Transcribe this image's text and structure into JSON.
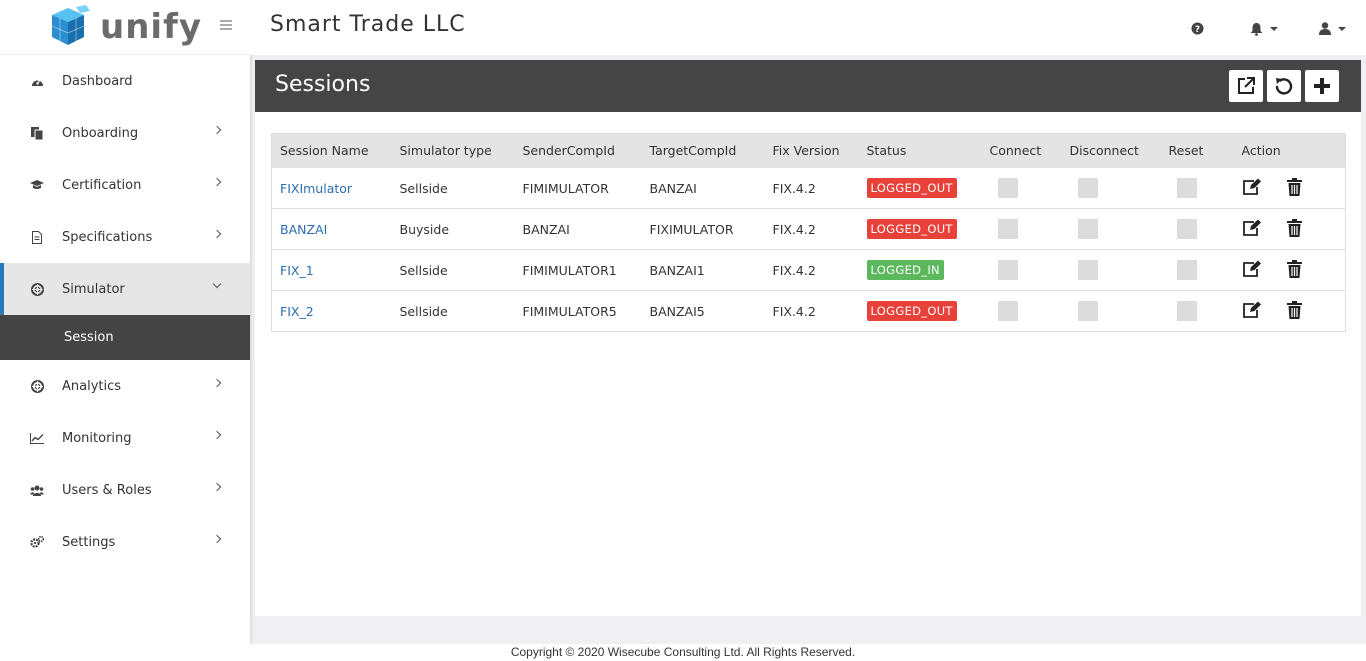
{
  "brand": {
    "name": "unify",
    "accent": "#2a7ab8"
  },
  "header": {
    "company": "Smart Trade LLC",
    "icons": [
      "help-icon",
      "bell-icon",
      "user-icon"
    ]
  },
  "sidebar": {
    "items": [
      {
        "label": "Dashboard",
        "icon": "dashboard-icon"
      },
      {
        "label": "Onboarding",
        "icon": "onboarding-icon"
      },
      {
        "label": "Certification",
        "icon": "graduation-cap-icon"
      },
      {
        "label": "Specifications",
        "icon": "document-icon"
      },
      {
        "label": "Simulator",
        "icon": "life-ring-icon",
        "expanded": true
      },
      {
        "label": "Analytics",
        "icon": "life-ring-icon"
      },
      {
        "label": "Monitoring",
        "icon": "line-chart-icon"
      },
      {
        "label": "Users & Roles",
        "icon": "users-icon"
      },
      {
        "label": "Settings",
        "icon": "cogs-icon"
      }
    ],
    "sub_item": "Session"
  },
  "panel": {
    "title": "Sessions",
    "buttons": [
      "export-icon",
      "refresh-icon",
      "add-icon"
    ]
  },
  "table": {
    "columns": [
      "Session Name",
      "Simulator type",
      "SenderCompId",
      "TargetCompId",
      "Fix Version",
      "Status",
      "Connect",
      "Disconnect",
      "Reset",
      "Action"
    ],
    "rows": [
      {
        "name": "FIXImulator",
        "type": "Sellside",
        "sender": "FIMIMULATOR",
        "target": "BANZAI",
        "version": "FIX.4.2",
        "status": "LOGGED_OUT"
      },
      {
        "name": "BANZAI",
        "type": "Buyside",
        "sender": "BANZAI",
        "target": "FIXIMULATOR",
        "version": "FIX.4.2",
        "status": "LOGGED_OUT"
      },
      {
        "name": "FIX_1",
        "type": "Sellside",
        "sender": "FIMIMULATOR1",
        "target": "BANZAI1",
        "version": "FIX.4.2",
        "status": "LOGGED_IN"
      },
      {
        "name": "FIX_2",
        "type": "Sellside",
        "sender": "FIMIMULATOR5",
        "target": "BANZAI5",
        "version": "FIX.4.2",
        "status": "LOGGED_OUT"
      }
    ],
    "status_colors": {
      "LOGGED_OUT": "#e8413a",
      "LOGGED_IN": "#5cb85c"
    }
  },
  "footer": {
    "text": "Copyright © 2020 Wisecube Consulting Ltd. All Rights Reserved."
  }
}
